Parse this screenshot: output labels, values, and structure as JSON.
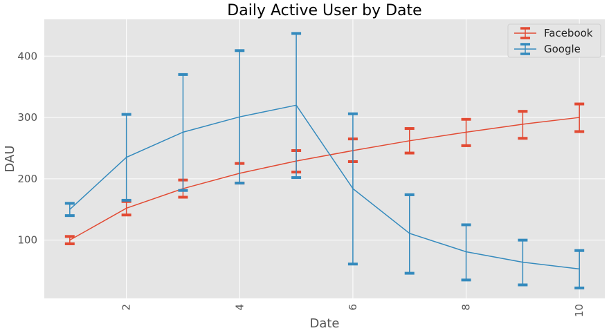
{
  "chart_data": {
    "type": "line",
    "title": "Daily Active User by Date",
    "xlabel": "Date",
    "ylabel": "DAU",
    "x": [
      1,
      2,
      3,
      4,
      5,
      6,
      7,
      8,
      9,
      10
    ],
    "xticks": [
      2,
      4,
      6,
      8,
      10
    ],
    "yticks": [
      100,
      200,
      300,
      400
    ],
    "xlim": [
      0.55,
      10.45
    ],
    "ylim": [
      5,
      460
    ],
    "grid": true,
    "legend_position": "top-right",
    "series": [
      {
        "name": "Facebook",
        "color": "#E24A33",
        "values": [
          100,
          152,
          184,
          209,
          229,
          246,
          262,
          276,
          289,
          300
        ],
        "error_low": [
          94,
          141,
          170,
          193,
          211,
          228,
          242,
          254,
          266,
          277
        ],
        "error_high": [
          106,
          163,
          198,
          225,
          246,
          265,
          282,
          297,
          310,
          322
        ]
      },
      {
        "name": "Google",
        "color": "#348ABD",
        "values": [
          150,
          235,
          276,
          301,
          320,
          184,
          111,
          81,
          64,
          53
        ],
        "error_low": [
          140,
          165,
          181,
          193,
          202,
          61,
          46,
          35,
          27,
          22
        ],
        "error_high": [
          160,
          305,
          370,
          409,
          437,
          306,
          174,
          125,
          100,
          83
        ]
      }
    ]
  }
}
